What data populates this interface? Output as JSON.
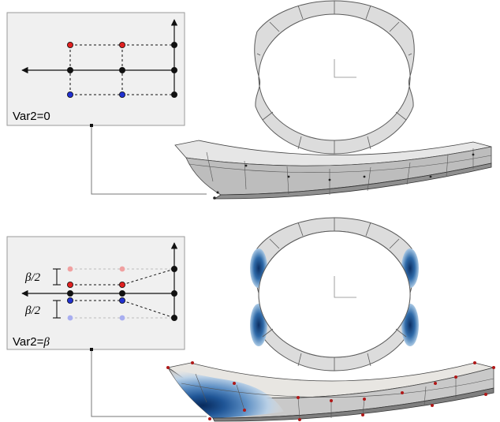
{
  "colors": {
    "panel_bg": "#f0f0f0",
    "panel_border": "#9a9a9a",
    "node_red": "#e02020",
    "node_blue": "#2030d0",
    "node_black": "#111111",
    "shell_fill": "#dcdcdc",
    "shell_edge": "#5a5a5a",
    "deformation_blue": "#1f4e8c",
    "control_point": "#b01818"
  },
  "panel_top": {
    "label": "Var2=0"
  },
  "panel_bottom": {
    "label": "Var2=",
    "label_symbol": "β",
    "offset_upper": "β/2",
    "offset_lower": "β/2"
  }
}
